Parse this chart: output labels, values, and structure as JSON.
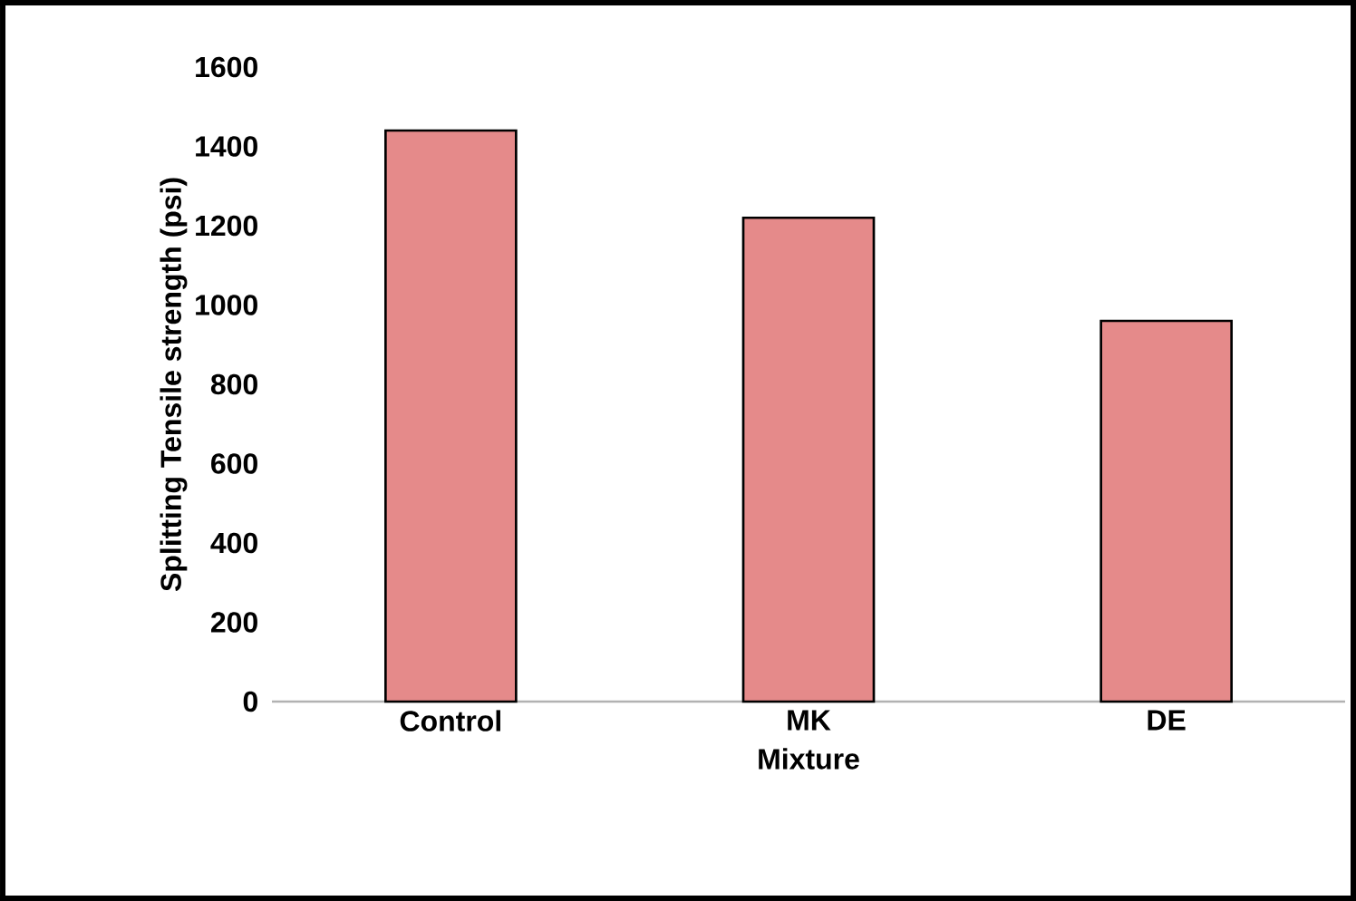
{
  "chart_data": {
    "type": "bar",
    "xlabel": "Mixture",
    "ylabel": "Splitting Tensile strength (psi)",
    "categories": [
      "Control",
      "MK",
      "DE"
    ],
    "values": [
      1440,
      1220,
      960
    ],
    "color": "#e58a8a",
    "ylim": [
      0,
      1600
    ],
    "yticks": [
      0,
      200,
      400,
      600,
      800,
      1000,
      1200,
      1400,
      1600
    ]
  }
}
